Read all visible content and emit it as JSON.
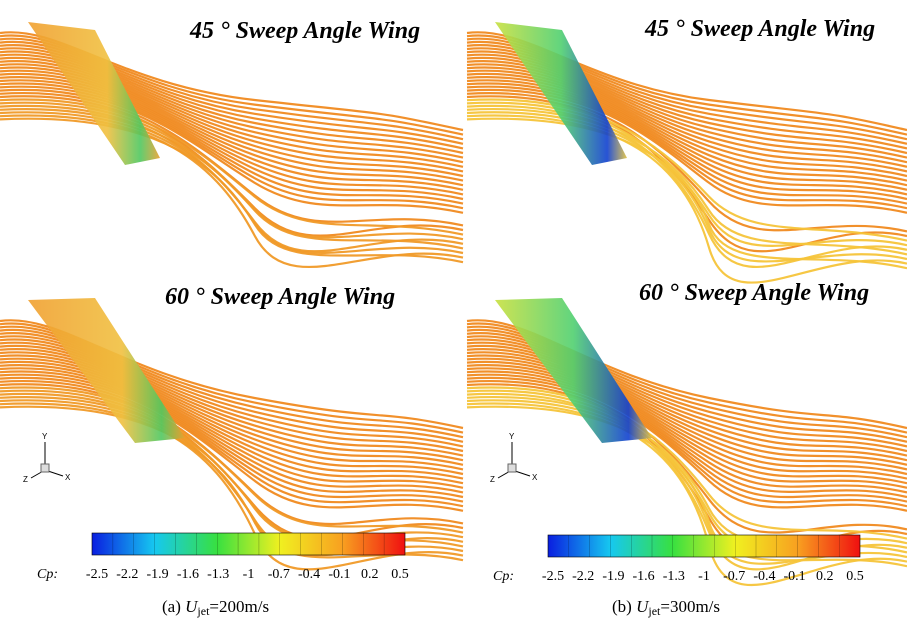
{
  "panels": [
    {
      "title": "45 ° Sweep Angle Wing"
    },
    {
      "title": "45 ° Sweep Angle Wing"
    },
    {
      "title": "60 ° Sweep Angle Wing"
    },
    {
      "title": "60 ° Sweep Angle Wing"
    }
  ],
  "triads": [
    {
      "y": "Y",
      "z": "Z",
      "x": "X"
    },
    {
      "y": "Y",
      "z": "Z",
      "x": "X"
    }
  ],
  "colorbars": [
    {
      "label": "Cp:",
      "ticks": [
        "-2.5",
        "-2.2",
        "-1.9",
        "-1.6",
        "-1.3",
        "-1",
        "-0.7",
        "-0.4",
        "-0.1",
        "0.2",
        "0.5"
      ]
    },
    {
      "label": "Cp:",
      "ticks": [
        "-2.5",
        "-2.2",
        "-1.9",
        "-1.6",
        "-1.3",
        "-1",
        "-0.7",
        "-0.4",
        "-0.1",
        "0.2",
        "0.5"
      ]
    }
  ],
  "captions": [
    {
      "label": "(a) ",
      "symbol": "U",
      "subscript": "jet",
      "rest": "=200m/s"
    },
    {
      "label": "(b) ",
      "symbol": "U",
      "subscript": "jet",
      "rest": "=300m/s"
    }
  ]
}
